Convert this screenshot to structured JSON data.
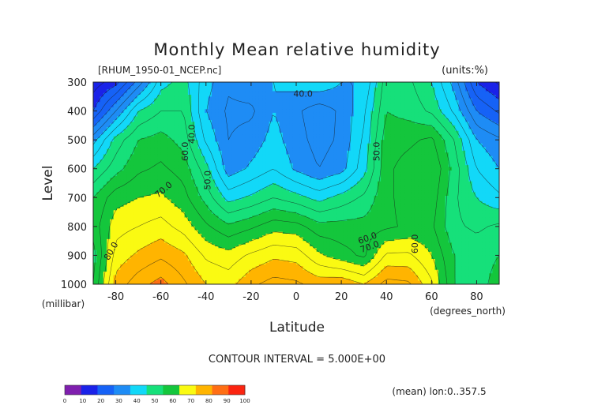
{
  "title": "Monthly Mean relative humidity",
  "source_label": "[RHUM_1950-01_NCEP.nc]",
  "units_label": "(units:%)",
  "contour_interval": "CONTOUR INTERVAL = 5.000E+00",
  "mean_note": "(mean) lon:0..357.5",
  "chart_data": {
    "type": "heatmap",
    "subtype": "filled-contour",
    "xlabel": "Latitude",
    "xunits": "(degrees_north)",
    "ylabel": "Level",
    "yunits": "(millibar)",
    "xlim": [
      -90,
      90
    ],
    "ylim": [
      1000,
      300
    ],
    "xticks": [
      -80,
      -60,
      -40,
      -20,
      0,
      20,
      40,
      60,
      80
    ],
    "xtick_labels": [
      "-80",
      "-60",
      "-40",
      "-20",
      "0",
      "20",
      "40",
      "60",
      "80"
    ],
    "yticks": [
      300,
      400,
      500,
      600,
      700,
      800,
      900,
      1000
    ],
    "ytick_labels": [
      "300",
      "400",
      "500",
      "600",
      "700",
      "800",
      "900",
      "1000"
    ],
    "contour_interval": 5,
    "lat": [
      -90,
      -80,
      -70,
      -60,
      -50,
      -40,
      -30,
      -20,
      -10,
      0,
      10,
      20,
      30,
      40,
      50,
      60,
      70,
      80,
      90
    ],
    "levels": [
      300,
      400,
      500,
      600,
      700,
      800,
      900,
      1000
    ],
    "values": [
      [
        12,
        18,
        32,
        48,
        52,
        42,
        36,
        38,
        40,
        42,
        44,
        40,
        40,
        58,
        56,
        50,
        38,
        20,
        14
      ],
      [
        20,
        35,
        50,
        55,
        55,
        40,
        34,
        34,
        40,
        36,
        32,
        36,
        44,
        60,
        58,
        54,
        44,
        30,
        24
      ],
      [
        38,
        52,
        60,
        62,
        58,
        44,
        35,
        37,
        42,
        37,
        33,
        36,
        46,
        63,
        64,
        66,
        55,
        40,
        36
      ],
      [
        50,
        58,
        64,
        66,
        63,
        52,
        37,
        41,
        45,
        39,
        35,
        38,
        48,
        64,
        67,
        70,
        58,
        45,
        40
      ],
      [
        60,
        68,
        70,
        71,
        67,
        58,
        48,
        51,
        55,
        52,
        48,
        52,
        56,
        64,
        67,
        68,
        56,
        50,
        46
      ],
      [
        62,
        73,
        75,
        77,
        73,
        66,
        61,
        64,
        68,
        67,
        62,
        62,
        62,
        64,
        66,
        66,
        56,
        54,
        56
      ],
      [
        58,
        77,
        81,
        84,
        81,
        74,
        72,
        76,
        79,
        78,
        71,
        67,
        64,
        76,
        76,
        70,
        60,
        58,
        60
      ],
      [
        60,
        82,
        88,
        92,
        86,
        80,
        78,
        84,
        87,
        86,
        83,
        84,
        80,
        87,
        86,
        76,
        60,
        58,
        62
      ]
    ],
    "contour_labels": [
      "40.0",
      "40.0",
      "50.0",
      "50.0",
      "60.0",
      "60.0",
      "60.0",
      "70.0",
      "70.0",
      "80.0"
    ],
    "colorbar": {
      "ticks": [
        "0",
        "10",
        "20",
        "30",
        "40",
        "50",
        "60",
        "70",
        "80",
        "90",
        "100"
      ],
      "colors": [
        "#7f1fae",
        "#1a22e8",
        "#1662f6",
        "#1e8cf5",
        "#12d8f8",
        "#16e07a",
        "#14c63c",
        "#fafa12",
        "#ffb400",
        "#ff6e14",
        "#fb2410"
      ]
    }
  }
}
